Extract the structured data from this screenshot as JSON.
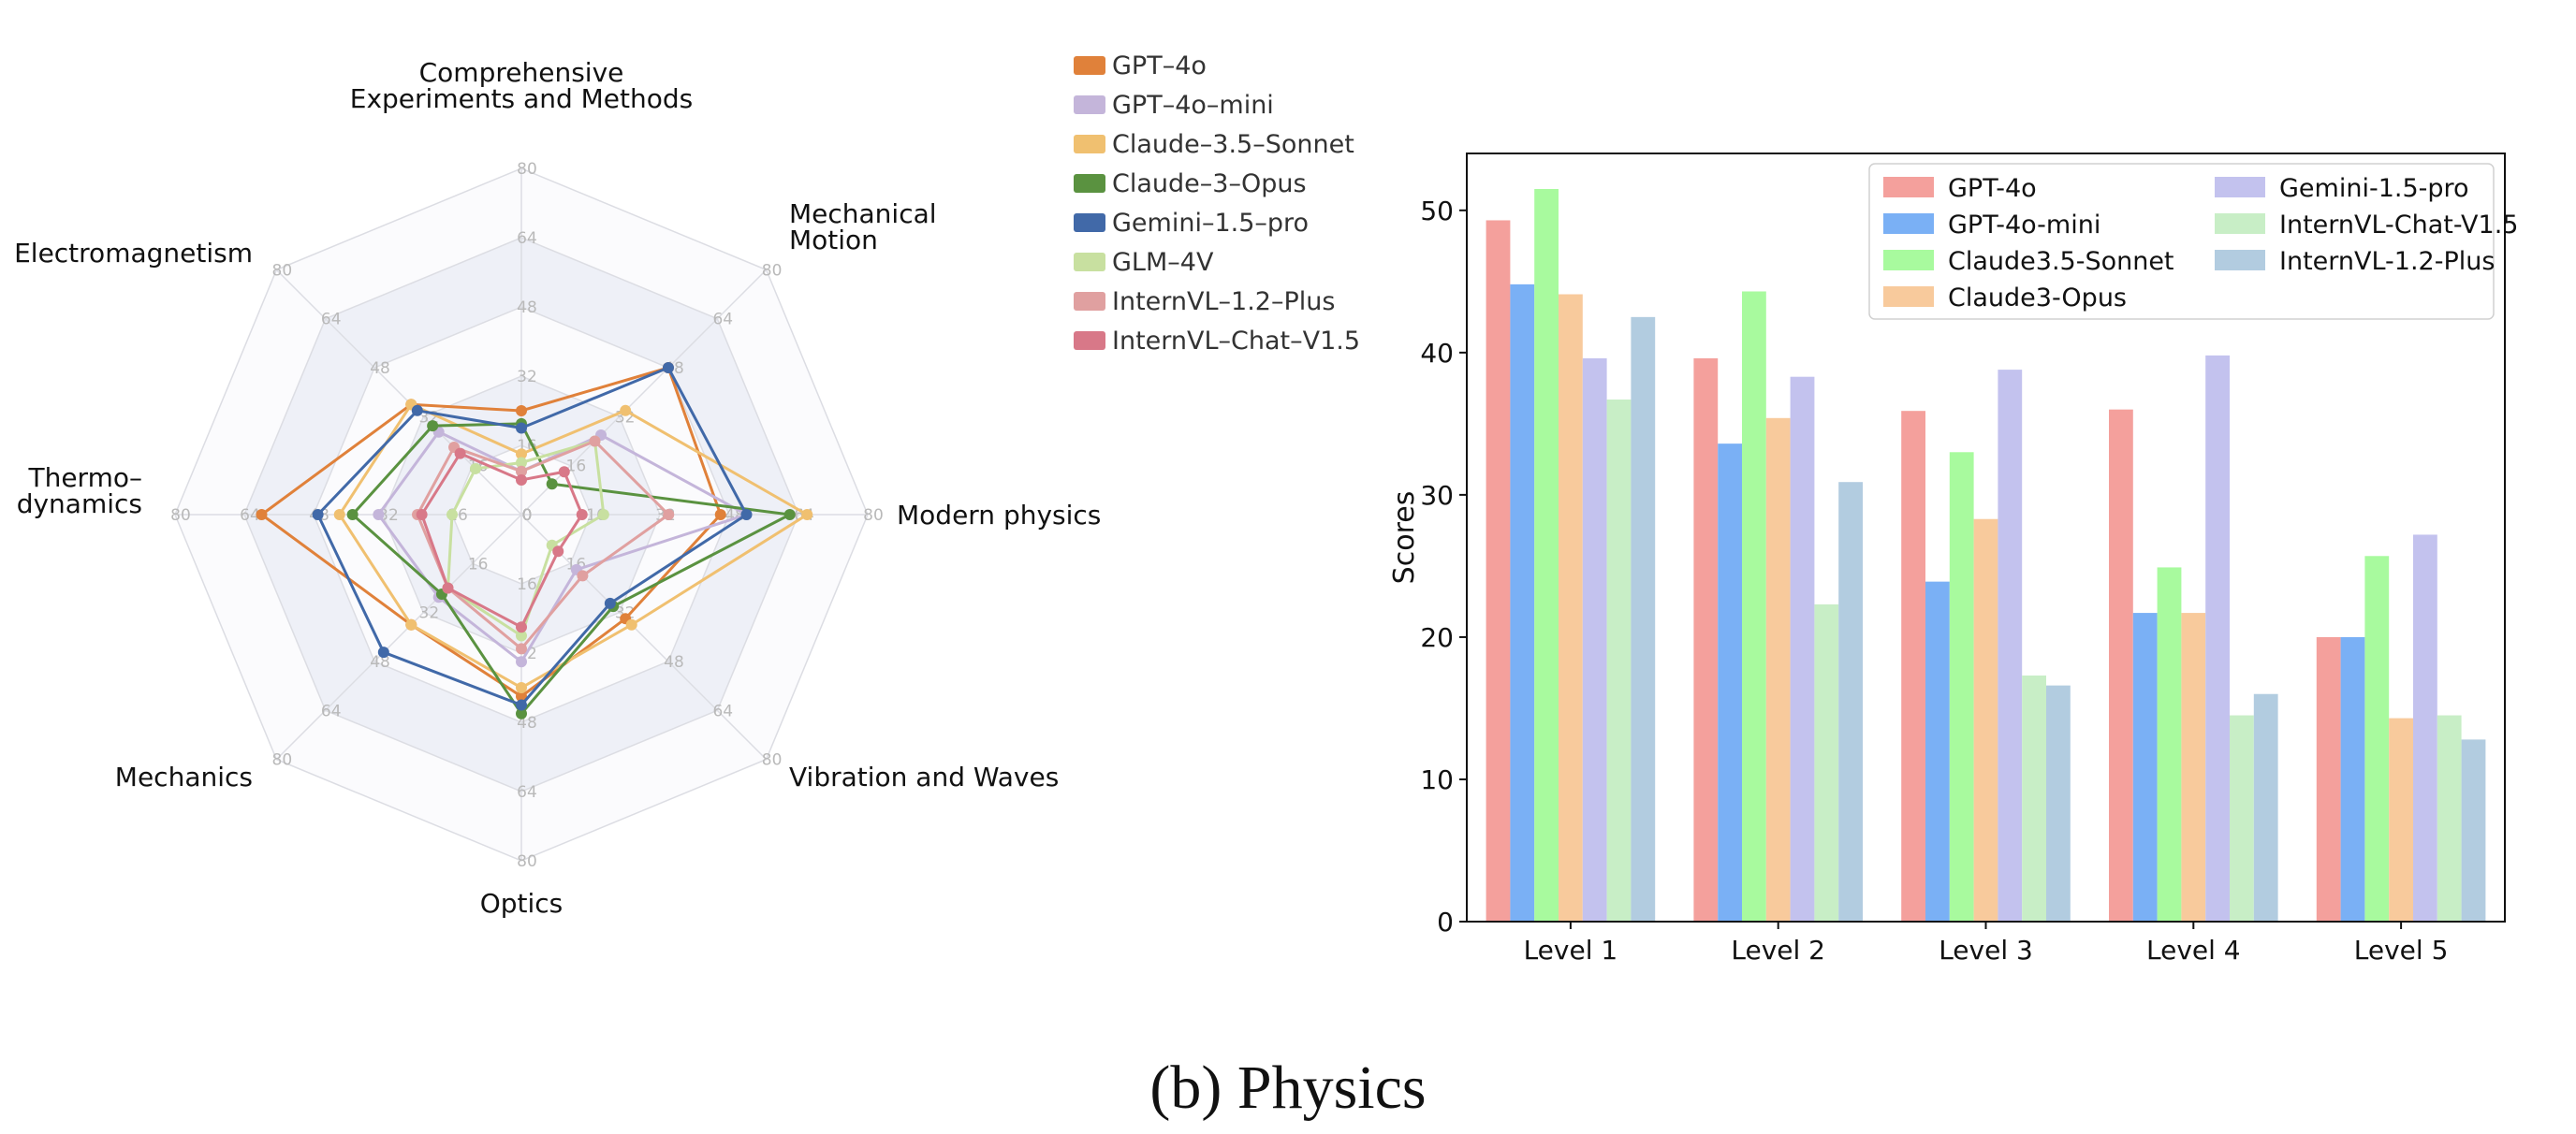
{
  "caption": "(b) Physics",
  "chart_data": [
    {
      "type": "radar",
      "axes": [
        "Modern physics",
        "Mechanical Motion",
        "Comprehensive Experiments and Methods",
        "Electromagnetism",
        "Thermo-dynamics",
        "Mechanics",
        "Optics",
        "Vibration and Waves"
      ],
      "axis_label_lines": [
        [
          "Modern physics"
        ],
        [
          "Mechanical",
          "Motion"
        ],
        [
          "Comprehensive",
          "Experiments and Methods"
        ],
        [
          "Electromagnetism"
        ],
        [
          "Thermo–",
          "dynamics"
        ],
        [
          "Mechanics"
        ],
        [
          "Optics"
        ],
        [
          "Vibration and Waves"
        ]
      ],
      "r_ticks": [
        0,
        16,
        32,
        48,
        64,
        80
      ],
      "r_max": 80,
      "legend": "top-right",
      "series": [
        {
          "name": "GPT–4o",
          "color": "#E0813A",
          "values": [
            46,
            48,
            24,
            36,
            60,
            36,
            42,
            34
          ]
        },
        {
          "name": "GPT–4o–mini",
          "color": "#C4B5DA",
          "values": [
            52,
            26,
            10,
            27,
            33,
            27,
            34,
            18
          ]
        },
        {
          "name": "Claude–3.5–Sonnet",
          "color": "#F0C070",
          "values": [
            66,
            34,
            14,
            36,
            42,
            36,
            40,
            36
          ]
        },
        {
          "name": "Claude–3–Opus",
          "color": "#5A9240",
          "values": [
            62,
            10,
            21,
            29,
            39,
            26,
            46,
            30
          ]
        },
        {
          "name": "Gemini–1.5–pro",
          "color": "#4169A8",
          "values": [
            52,
            48,
            20,
            34,
            47,
            45,
            44,
            29
          ]
        },
        {
          "name": "GLM–4V",
          "color": "#C8E0A0",
          "values": [
            19,
            24,
            12,
            15,
            16,
            24,
            28,
            10
          ]
        },
        {
          "name": "InternVL–1.2–Plus",
          "color": "#E0A0A0",
          "values": [
            34,
            24,
            10,
            22,
            24,
            24,
            31,
            20
          ]
        },
        {
          "name": "InternVL–Chat–V1.5",
          "color": "#D87888",
          "values": [
            14,
            14,
            8,
            20,
            23,
            24,
            26,
            12
          ]
        }
      ]
    },
    {
      "type": "bar",
      "categories": [
        "Level 1",
        "Level 2",
        "Level 3",
        "Level 4",
        "Level 5"
      ],
      "ylabel": "Scores",
      "ylim": [
        0,
        54
      ],
      "yticks": [
        0,
        10,
        20,
        30,
        40,
        50
      ],
      "legend": "upper-right, 2 columns",
      "series": [
        {
          "name": "GPT-4o",
          "color": "#F4A09C",
          "values": [
            49.3,
            39.6,
            35.9,
            36.0,
            20.0
          ]
        },
        {
          "name": "GPT-4o-mini",
          "color": "#7AB0F5",
          "values": [
            44.8,
            33.6,
            23.9,
            21.7,
            20.0
          ]
        },
        {
          "name": "Claude3.5-Sonnet",
          "color": "#A8FA9E",
          "values": [
            51.5,
            44.3,
            33.0,
            24.9,
            25.7
          ]
        },
        {
          "name": "Claude3-Opus",
          "color": "#F8CA9C",
          "values": [
            44.1,
            35.4,
            28.3,
            21.7,
            14.3
          ]
        },
        {
          "name": "Gemini-1.5-pro",
          "color": "#C3C2EE",
          "values": [
            39.6,
            38.3,
            38.8,
            39.8,
            27.2
          ]
        },
        {
          "name": "InternVL-Chat-V1.5",
          "color": "#C8EEC6",
          "values": [
            36.7,
            22.3,
            17.3,
            14.5,
            14.5
          ]
        },
        {
          "name": "InternVL-1.2-Plus",
          "color": "#B2CCE0",
          "values": [
            42.5,
            30.9,
            16.6,
            16.0,
            12.8
          ]
        }
      ]
    }
  ]
}
